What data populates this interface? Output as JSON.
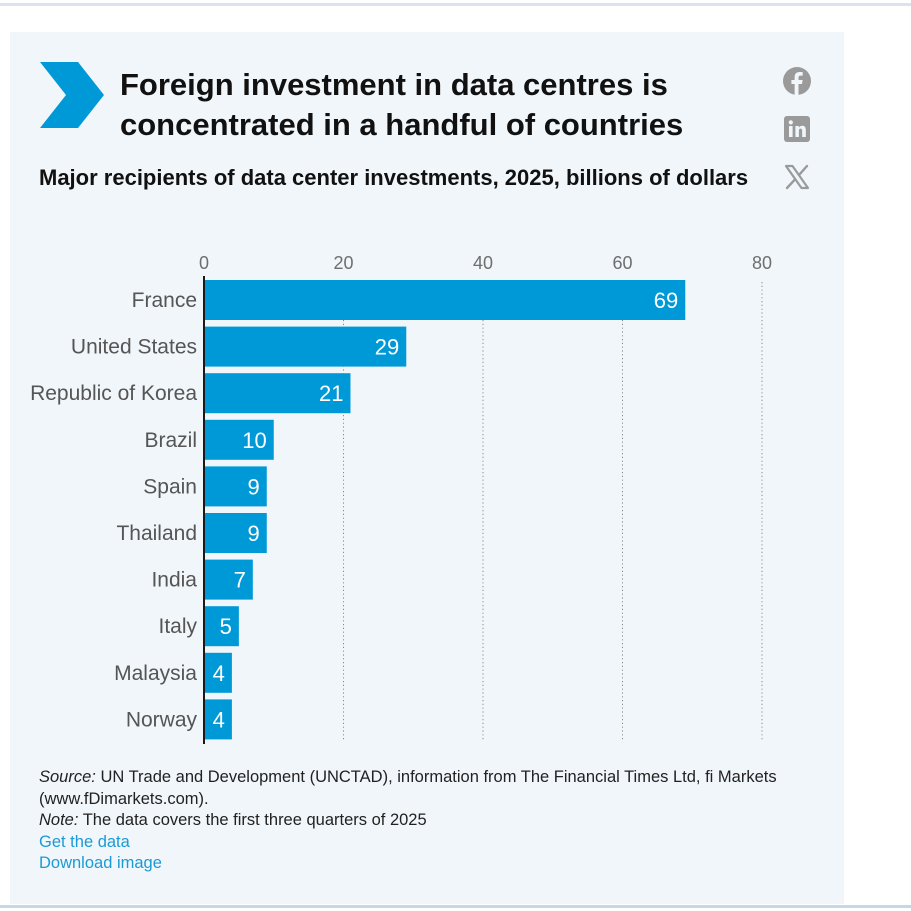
{
  "header": {
    "title": "Foreign investment in data centres is concentrated in a handful of countries",
    "subtitle": "Major recipients of data center investments, 2025, billions of dollars"
  },
  "social": {
    "icons": [
      "facebook-icon",
      "linkedin-icon",
      "x-icon"
    ]
  },
  "colors": {
    "bar": "#0099d8",
    "accent": "#0099d8",
    "icon": "#9a9a9a",
    "link": "#1a9ad6",
    "card_bg": "#f1f6fa"
  },
  "chart_data": {
    "type": "bar",
    "orientation": "horizontal",
    "title": "Major recipients of data center investments, 2025, billions of dollars",
    "categories": [
      "France",
      "United States",
      "Republic of Korea",
      "Brazil",
      "Spain",
      "Thailand",
      "India",
      "Italy",
      "Malaysia",
      "Norway"
    ],
    "values": [
      69,
      29,
      21,
      10,
      9,
      9,
      7,
      5,
      4,
      4
    ],
    "data_labels": [
      "69",
      "29",
      "21",
      "10",
      "9",
      "9",
      "7",
      "5",
      "4",
      "4"
    ],
    "xticks": [
      0,
      20,
      40,
      60,
      80
    ],
    "xtick_labels": [
      "0",
      "20",
      "40",
      "60",
      "80"
    ],
    "xlim": [
      0,
      80
    ],
    "xaxis_position": "top",
    "grid": "vertical dotted",
    "xlabel": "",
    "ylabel": ""
  },
  "footer": {
    "source_label": "Source:",
    "source_text": " UN Trade and Development (UNCTAD), information from The Financial Times Ltd, fi Markets",
    "source_text_2": "(www.fDimarkets.com).",
    "note_label": "Note:",
    "note_text": " The data covers the first three quarters of 2025",
    "get_data_label": "Get the data",
    "download_label": "Download image"
  }
}
